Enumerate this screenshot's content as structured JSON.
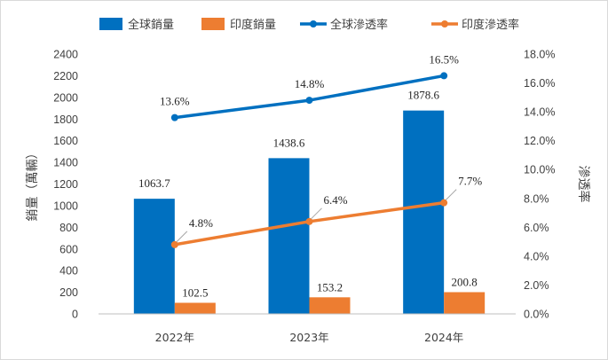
{
  "chart_data": {
    "type": "bar",
    "categories": [
      "2022年",
      "2023年",
      "2024年"
    ],
    "series": [
      {
        "name": "全球銷量",
        "kind": "bar",
        "axis": "left",
        "color": "#0070C0",
        "values": [
          1063.7,
          1438.6,
          1878.6
        ],
        "labels": [
          "1063.7",
          "1438.6",
          "1878.6"
        ]
      },
      {
        "name": "印度銷量",
        "kind": "bar",
        "axis": "left",
        "color": "#ED7D31",
        "values": [
          102.5,
          153.2,
          200.8
        ],
        "labels": [
          "102.5",
          "153.2",
          "200.8"
        ]
      },
      {
        "name": "全球滲透率",
        "kind": "line",
        "axis": "right",
        "color": "#0070C0",
        "values": [
          13.6,
          14.8,
          16.5
        ],
        "labels": [
          "13.6%",
          "14.8%",
          "16.5%"
        ]
      },
      {
        "name": "印度滲透率",
        "kind": "line",
        "axis": "right",
        "color": "#ED7D31",
        "values": [
          4.8,
          6.4,
          7.7
        ],
        "labels": [
          "4.8%",
          "6.4%",
          "7.7%"
        ]
      }
    ],
    "ylabel": "銷量（萬輛）",
    "y2label": "滲透率",
    "ylim": [
      0,
      2400
    ],
    "yticks": [
      "0",
      "200",
      "400",
      "600",
      "800",
      "1000",
      "1200",
      "1400",
      "1600",
      "1800",
      "2000",
      "2200",
      "2400"
    ],
    "y2lim": [
      0,
      18
    ],
    "y2ticks": [
      "0.0%",
      "2.0%",
      "4.0%",
      "6.0%",
      "8.0%",
      "10.0%",
      "12.0%",
      "14.0%",
      "16.0%",
      "18.0%"
    ],
    "grid": false,
    "legend": "top"
  }
}
